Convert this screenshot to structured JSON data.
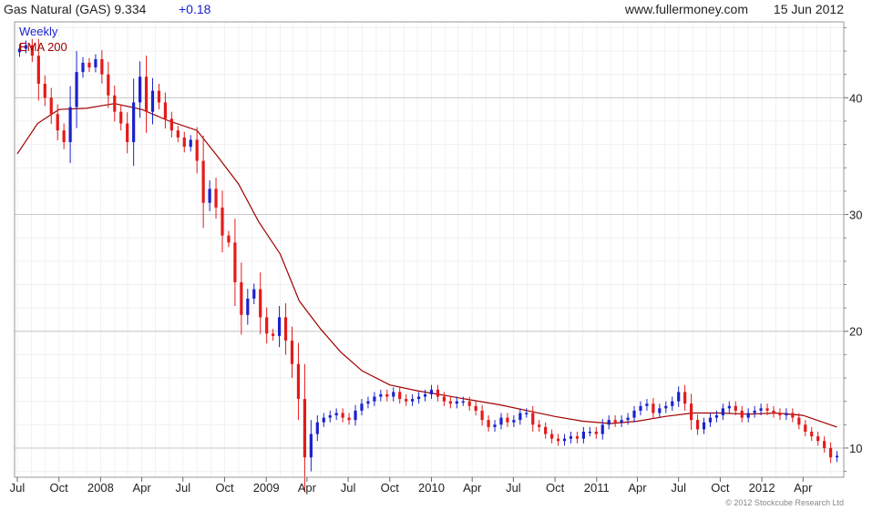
{
  "header": {
    "title": "Gas Natural (GAS) 9.334",
    "change": "+0.18",
    "site": "www.fullermoney.com",
    "date": "15 Jun 2012"
  },
  "footer": {
    "copyright": "© 2012 Stockcube Research Ltd"
  },
  "colors": {
    "up": "#1a22cc",
    "down": "#e41a1a",
    "ema": "#a00000",
    "grid": "#dddddd",
    "axis": "#999999"
  },
  "chart_data": {
    "type": "line",
    "title": "Gas Natural (GAS) 9.334",
    "series": [
      {
        "name": "Weekly",
        "style": "candlestick",
        "points": [
          [
            "2007-07-06",
            44.2
          ],
          [
            "2007-07-20",
            44.5
          ],
          [
            "2007-08-03",
            43.6
          ],
          [
            "2007-08-17",
            41.2
          ],
          [
            "2007-08-31",
            40.0
          ],
          [
            "2007-09-14",
            38.6
          ],
          [
            "2007-09-28",
            37.2
          ],
          [
            "2007-10-12",
            36.2
          ],
          [
            "2007-10-26",
            39.2
          ],
          [
            "2007-11-09",
            42.2
          ],
          [
            "2007-11-23",
            43.0
          ],
          [
            "2007-12-07",
            42.6
          ],
          [
            "2007-12-21",
            43.3
          ],
          [
            "2008-01-04",
            42.0
          ],
          [
            "2008-01-18",
            40.2
          ],
          [
            "2008-02-01",
            38.8
          ],
          [
            "2008-02-15",
            37.8
          ],
          [
            "2008-02-29",
            36.2
          ],
          [
            "2008-03-14",
            39.6
          ],
          [
            "2008-03-28",
            41.8
          ],
          [
            "2008-04-11",
            38.8
          ],
          [
            "2008-04-25",
            40.6
          ],
          [
            "2008-05-09",
            39.6
          ],
          [
            "2008-05-23",
            38.2
          ],
          [
            "2008-06-06",
            37.2
          ],
          [
            "2008-06-20",
            36.6
          ],
          [
            "2008-07-04",
            35.8
          ],
          [
            "2008-07-18",
            36.4
          ],
          [
            "2008-08-01",
            34.6
          ],
          [
            "2008-08-15",
            31.0
          ],
          [
            "2008-08-29",
            32.2
          ],
          [
            "2008-09-12",
            30.6
          ],
          [
            "2008-09-26",
            28.2
          ],
          [
            "2008-10-10",
            27.6
          ],
          [
            "2008-10-24",
            24.2
          ],
          [
            "2008-11-07",
            21.4
          ],
          [
            "2008-11-21",
            22.8
          ],
          [
            "2008-12-05",
            23.6
          ],
          [
            "2008-12-19",
            21.2
          ],
          [
            "2009-01-02",
            19.8
          ],
          [
            "2009-01-16",
            19.6
          ],
          [
            "2009-01-30",
            21.2
          ],
          [
            "2009-02-13",
            19.2
          ],
          [
            "2009-02-27",
            17.2
          ],
          [
            "2009-03-13",
            14.2
          ],
          [
            "2009-03-27",
            9.2
          ],
          [
            "2009-04-10",
            11.2
          ],
          [
            "2009-04-24",
            12.2
          ],
          [
            "2009-05-08",
            12.6
          ],
          [
            "2009-05-22",
            12.8
          ],
          [
            "2009-06-05",
            13.0
          ],
          [
            "2009-06-19",
            12.6
          ],
          [
            "2009-07-03",
            12.4
          ],
          [
            "2009-07-17",
            13.2
          ],
          [
            "2009-07-31",
            13.8
          ],
          [
            "2009-08-14",
            14.0
          ],
          [
            "2009-08-28",
            14.4
          ],
          [
            "2009-09-11",
            14.6
          ],
          [
            "2009-09-25",
            14.4
          ],
          [
            "2009-10-09",
            14.8
          ],
          [
            "2009-10-23",
            14.2
          ],
          [
            "2009-11-06",
            14.0
          ],
          [
            "2009-11-20",
            14.2
          ],
          [
            "2009-12-04",
            14.4
          ],
          [
            "2009-12-18",
            14.6
          ],
          [
            "2010-01-01",
            15.0
          ],
          [
            "2010-01-15",
            14.4
          ],
          [
            "2010-01-29",
            14.0
          ],
          [
            "2010-02-12",
            13.8
          ],
          [
            "2010-02-26",
            14.0
          ],
          [
            "2010-03-12",
            14.0
          ],
          [
            "2010-03-26",
            13.6
          ],
          [
            "2010-04-09",
            13.2
          ],
          [
            "2010-04-23",
            12.4
          ],
          [
            "2010-05-07",
            11.8
          ],
          [
            "2010-05-21",
            12.0
          ],
          [
            "2010-06-04",
            12.6
          ],
          [
            "2010-06-18",
            12.2
          ],
          [
            "2010-07-02",
            12.4
          ],
          [
            "2010-07-16",
            13.0
          ],
          [
            "2010-07-30",
            13.0
          ],
          [
            "2010-08-13",
            12.0
          ],
          [
            "2010-08-27",
            11.8
          ],
          [
            "2010-09-10",
            11.2
          ],
          [
            "2010-09-24",
            10.8
          ],
          [
            "2010-10-08",
            10.6
          ],
          [
            "2010-10-22",
            10.8
          ],
          [
            "2010-11-05",
            11.0
          ],
          [
            "2010-11-19",
            10.8
          ],
          [
            "2010-12-03",
            11.4
          ],
          [
            "2010-12-17",
            11.4
          ],
          [
            "2010-12-31",
            11.2
          ],
          [
            "2011-01-14",
            12.0
          ],
          [
            "2011-01-28",
            12.4
          ],
          [
            "2011-02-11",
            12.2
          ],
          [
            "2011-02-25",
            12.4
          ],
          [
            "2011-03-11",
            12.6
          ],
          [
            "2011-03-25",
            13.2
          ],
          [
            "2011-04-08",
            13.6
          ],
          [
            "2011-04-22",
            13.8
          ],
          [
            "2011-05-06",
            13.0
          ],
          [
            "2011-05-20",
            13.4
          ],
          [
            "2011-06-03",
            13.6
          ],
          [
            "2011-06-17",
            14.0
          ],
          [
            "2011-07-01",
            14.8
          ],
          [
            "2011-07-15",
            13.8
          ],
          [
            "2011-07-29",
            12.4
          ],
          [
            "2011-08-12",
            11.6
          ],
          [
            "2011-08-26",
            12.2
          ],
          [
            "2011-09-09",
            12.6
          ],
          [
            "2011-09-23",
            12.8
          ],
          [
            "2011-10-07",
            13.4
          ],
          [
            "2011-10-21",
            13.6
          ],
          [
            "2011-11-04",
            13.2
          ],
          [
            "2011-11-18",
            12.6
          ],
          [
            "2011-12-02",
            13.0
          ],
          [
            "2011-12-16",
            13.2
          ],
          [
            "2011-12-30",
            13.4
          ],
          [
            "2012-01-13",
            13.2
          ],
          [
            "2012-01-27",
            13.0
          ],
          [
            "2012-02-10",
            12.8
          ],
          [
            "2012-02-24",
            13.0
          ],
          [
            "2012-03-09",
            12.6
          ],
          [
            "2012-03-23",
            12.0
          ],
          [
            "2012-04-06",
            11.4
          ],
          [
            "2012-04-20",
            11.0
          ],
          [
            "2012-05-04",
            10.6
          ],
          [
            "2012-05-18",
            10.0
          ],
          [
            "2012-06-01",
            9.2
          ],
          [
            "2012-06-15",
            9.334
          ]
        ]
      },
      {
        "name": "EMA 200",
        "style": "line",
        "points": [
          [
            "2007-07-01",
            35.2
          ],
          [
            "2007-08-15",
            37.8
          ],
          [
            "2007-10-01",
            39.0
          ],
          [
            "2007-12-01",
            39.1
          ],
          [
            "2008-02-01",
            39.5
          ],
          [
            "2008-04-01",
            39.0
          ],
          [
            "2008-06-01",
            38.0
          ],
          [
            "2008-08-01",
            37.2
          ],
          [
            "2008-09-15",
            35.0
          ],
          [
            "2008-11-01",
            32.6
          ],
          [
            "2008-12-15",
            29.4
          ],
          [
            "2009-02-01",
            26.6
          ],
          [
            "2009-03-15",
            22.6
          ],
          [
            "2009-05-01",
            20.2
          ],
          [
            "2009-06-15",
            18.2
          ],
          [
            "2009-08-01",
            16.6
          ],
          [
            "2009-10-01",
            15.4
          ],
          [
            "2009-12-01",
            14.9
          ],
          [
            "2010-02-01",
            14.5
          ],
          [
            "2010-04-01",
            14.1
          ],
          [
            "2010-06-01",
            13.7
          ],
          [
            "2010-08-01",
            13.2
          ],
          [
            "2010-10-01",
            12.7
          ],
          [
            "2010-12-01",
            12.3
          ],
          [
            "2011-02-01",
            12.1
          ],
          [
            "2011-04-01",
            12.3
          ],
          [
            "2011-06-01",
            12.7
          ],
          [
            "2011-08-01",
            13.0
          ],
          [
            "2011-10-01",
            13.0
          ],
          [
            "2011-12-01",
            12.9
          ],
          [
            "2012-02-01",
            13.0
          ],
          [
            "2012-04-01",
            12.8
          ],
          [
            "2012-06-15",
            11.8
          ]
        ]
      }
    ],
    "xlim": [
      "2007-06-25",
      "2012-06-30"
    ],
    "ylim": [
      7.5,
      46.5
    ],
    "yticks": [
      10,
      20,
      30,
      40
    ],
    "ytick_labels": [
      "10",
      "20",
      "30",
      "40"
    ],
    "xticks": [
      [
        "2007-07-01",
        "Jul"
      ],
      [
        "2007-10-01",
        "Oct"
      ],
      [
        "2008-01-01",
        "2008"
      ],
      [
        "2008-04-01",
        "Apr"
      ],
      [
        "2008-07-01",
        "Jul"
      ],
      [
        "2008-10-01",
        "Oct"
      ],
      [
        "2009-01-01",
        "2009"
      ],
      [
        "2009-04-01",
        "Apr"
      ],
      [
        "2009-07-01",
        "Jul"
      ],
      [
        "2009-10-01",
        "Oct"
      ],
      [
        "2010-01-01",
        "2010"
      ],
      [
        "2010-04-01",
        "Apr"
      ],
      [
        "2010-07-01",
        "Jul"
      ],
      [
        "2010-10-01",
        "Oct"
      ],
      [
        "2011-01-01",
        "2011"
      ],
      [
        "2011-04-01",
        "Apr"
      ],
      [
        "2011-07-01",
        "Jul"
      ],
      [
        "2011-10-01",
        "Oct"
      ],
      [
        "2012-01-01",
        "2012"
      ],
      [
        "2012-04-01",
        "Apr"
      ]
    ],
    "grid": true,
    "legend": "top-left",
    "y_axis_side": "right"
  }
}
